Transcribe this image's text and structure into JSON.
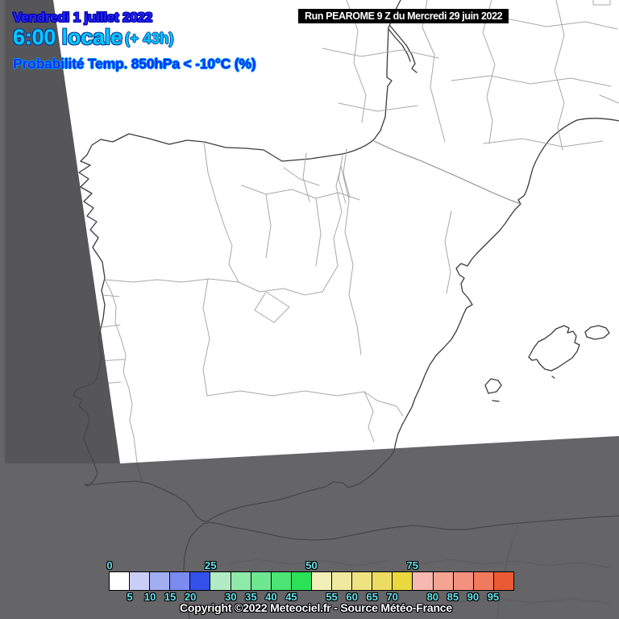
{
  "header": {
    "date": "Vendredi 1 juillet 2022",
    "time": "6:00 locale",
    "offset": "(+ 43h)",
    "product": "Probabilité Temp. 850hPa < -10°C (%)"
  },
  "run_box": {
    "label": "Run PEAROME 9 Z du Mercredi 29 juin 2022"
  },
  "legend": {
    "boundary_labels": [
      "0",
      "5",
      "10",
      "15",
      "20",
      "25",
      "30",
      "35",
      "40",
      "45",
      "50",
      "55",
      "60",
      "65",
      "70",
      "75",
      "80",
      "85",
      "90",
      "95"
    ],
    "cell_colors": [
      "#ffffff",
      "#c9cef6",
      "#a3aef2",
      "#7b8bee",
      "#3351ea",
      "#b2ecc4",
      "#8fe9a9",
      "#6ee791",
      "#4ce574",
      "#2ce157",
      "#f2efb8",
      "#f0e9a0",
      "#eee382",
      "#ecdd62",
      "#ead83e",
      "#f6b8b0",
      "#f4a492",
      "#f29180",
      "#ef7a5e",
      "#ea5a34"
    ]
  },
  "footer": {
    "copyright": "Copyright ©2022 Meteociel.fr - Source Météo-France"
  },
  "palette": {
    "header_date_blue": "#2424ff",
    "header_time_cyan": "#00ccff",
    "header_product_blue": "#0f2fff",
    "tick_cyan": "#6ae2ec",
    "surround_grey": "#656568",
    "wedge_grey": "#565659",
    "domain_white": "#ffffff"
  }
}
